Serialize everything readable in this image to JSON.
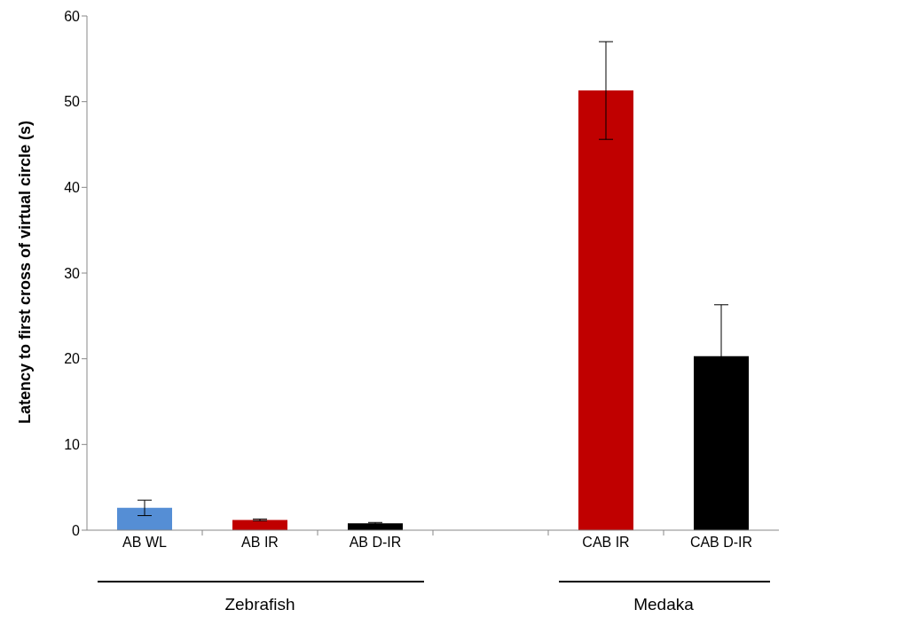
{
  "chart_data": {
    "type": "bar",
    "ylabel": "Latency to first cross of virtual circle (s)",
    "categories": [
      "AB WL",
      "AB IR",
      "AB D-IR",
      null,
      "CAB IR",
      "CAB D-IR"
    ],
    "values": [
      2.6,
      1.2,
      0.8,
      null,
      51.3,
      20.3
    ],
    "errors": [
      0.9,
      0.1,
      0.1,
      null,
      5.7,
      6.0
    ],
    "colors": [
      "#558ed5",
      "#c00000",
      "#000000",
      "#ffffff",
      "#c00000",
      "#000000"
    ],
    "ylim": [
      0,
      60
    ],
    "yticks": [
      0,
      10,
      20,
      30,
      40,
      50,
      60
    ],
    "grid": false,
    "legend": false,
    "annotations": [
      "Zebrafish",
      "Medaka"
    ]
  }
}
